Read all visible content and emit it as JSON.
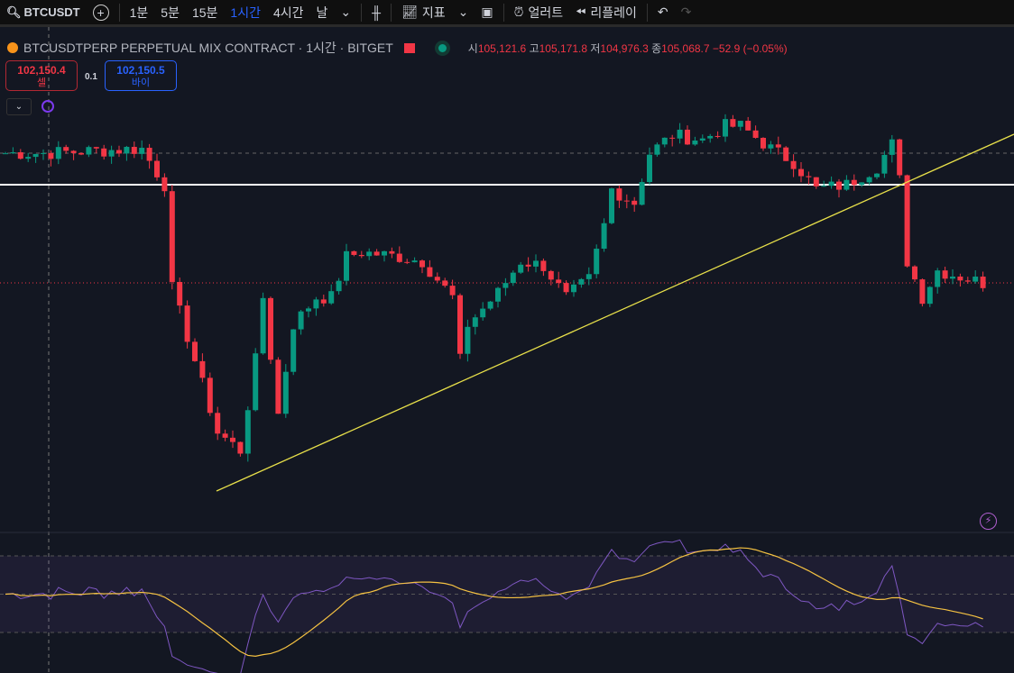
{
  "toolbar": {
    "symbol": "BTCUSDT",
    "intervals": [
      "1분",
      "5분",
      "15분",
      "1시간",
      "4시간",
      "날"
    ],
    "active_interval": "1시간",
    "indicators": "지표",
    "alerts": "얼러트",
    "replay": "리플레이"
  },
  "legend": {
    "title": "BTCUSDTPERP PERPETUAL MIX CONTRACT · 1시간 · BITGET",
    "o_label": "시",
    "o": "105,121.6",
    "h_label": "고",
    "h": "105,171.8",
    "l_label": "저",
    "l": "104,976.3",
    "c_label": "종",
    "c": "105,068.7",
    "change": "−52.9 (−0.05%)"
  },
  "trade": {
    "sell_price": "102,150.4",
    "sell_label": "셀",
    "spread": "0.1",
    "buy_price": "102,150.5",
    "buy_label": "바이"
  },
  "colors": {
    "up": "#089981",
    "down": "#f23645",
    "trendline": "#e8e04a",
    "rsi": "#7e57c2",
    "rsi_ma": "#f5c242"
  },
  "chart_data": {
    "type": "candlestick",
    "interval": "1h",
    "price_path_keyframes": [
      [
        0,
        106509
      ],
      [
        5,
        106509
      ],
      [
        18,
        106559
      ],
      [
        21,
        106159
      ],
      [
        22,
        105009
      ],
      [
        25,
        104209
      ],
      [
        28,
        103409
      ],
      [
        31,
        103209
      ],
      [
        33,
        104209
      ],
      [
        34,
        104909
      ],
      [
        36,
        103609
      ],
      [
        38,
        104609
      ],
      [
        41,
        104909
      ],
      [
        43,
        104909
      ],
      [
        45,
        105359
      ],
      [
        47,
        105409
      ],
      [
        52,
        105359
      ],
      [
        55,
        105309
      ],
      [
        59,
        104909
      ],
      [
        60,
        104209
      ],
      [
        61,
        104609
      ],
      [
        65,
        104959
      ],
      [
        68,
        105309
      ],
      [
        71,
        105259
      ],
      [
        74,
        104909
      ],
      [
        77,
        105109
      ],
      [
        79,
        105709
      ],
      [
        80,
        106109
      ],
      [
        83,
        105959
      ],
      [
        85,
        106509
      ],
      [
        88,
        106709
      ],
      [
        92,
        106659
      ],
      [
        95,
        106809
      ],
      [
        97,
        106809
      ],
      [
        101,
        106559
      ],
      [
        104,
        106409
      ],
      [
        107,
        106109
      ],
      [
        111,
        106159
      ],
      [
        115,
        106359
      ],
      [
        117,
        106609
      ],
      [
        118,
        106209
      ],
      [
        119,
        105309
      ],
      [
        121,
        104909
      ],
      [
        123,
        105209
      ],
      [
        129,
        105069
      ]
    ],
    "candle_count": 130,
    "horizontal_levels": [
      106509,
      106159,
      105069
    ],
    "rsi_levels": [
      70,
      50,
      30
    ]
  }
}
